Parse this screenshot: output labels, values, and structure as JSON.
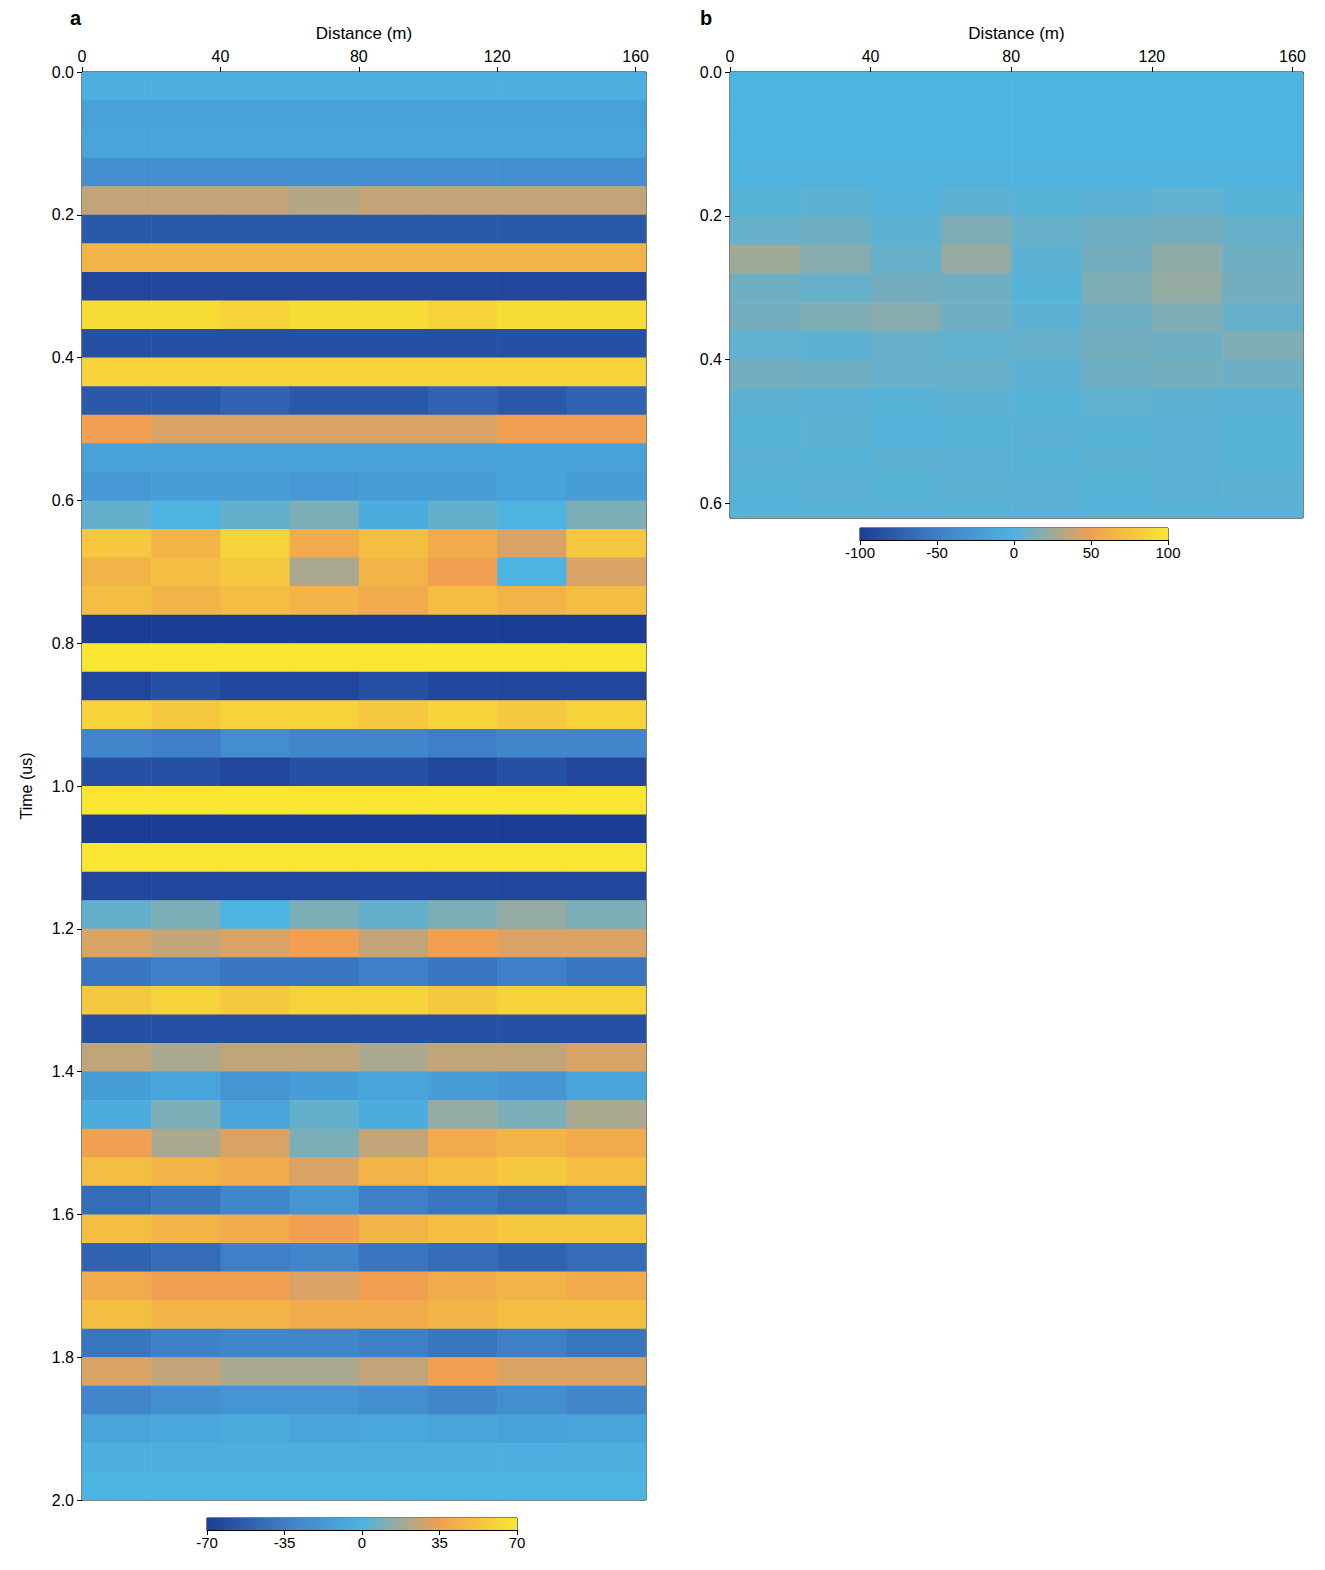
{
  "chart_data": [
    {
      "type": "heatmap",
      "panel": "a",
      "x_label": "Distance (m)",
      "y_label": "Time (us)",
      "xlim": [
        0,
        163
      ],
      "xticks": [
        0,
        40,
        80,
        120,
        160
      ],
      "ylim": [
        0,
        2.0
      ],
      "yticks": [
        {
          "value": 0,
          "label": "0.0"
        },
        0.2,
        0.4,
        0.6,
        0.8,
        {
          "value": 1,
          "label": "1.0"
        },
        1.2,
        1.4,
        1.6,
        1.8,
        {
          "value": 2,
          "label": "2.0"
        }
      ],
      "x_bins": [
        0,
        20,
        40,
        60,
        80,
        100,
        120,
        140,
        163
      ],
      "y_bins": [
        0,
        0.04,
        0.08,
        0.12,
        0.16,
        0.2,
        0.24,
        0.28,
        0.32,
        0.36,
        0.4,
        0.44,
        0.48,
        0.52,
        0.56,
        0.6,
        0.64,
        0.68,
        0.72,
        0.76,
        0.8,
        0.84,
        0.88,
        0.92,
        0.96,
        1.0,
        1.04,
        1.08,
        1.12,
        1.16,
        1.2,
        1.24,
        1.28,
        1.32,
        1.36,
        1.4,
        1.44,
        1.48,
        1.52,
        1.56,
        1.6,
        1.64,
        1.68,
        1.72,
        1.76,
        1.8,
        1.84,
        1.88,
        1.92,
        1.96,
        2.0
      ],
      "cells": [
        [
          -3,
          -3,
          -3,
          -3,
          -3,
          -3,
          -3,
          -3
        ],
        [
          -12,
          -12,
          -12,
          -12,
          -12,
          -12,
          -12,
          -12
        ],
        [
          -10,
          -10,
          -10,
          -10,
          -10,
          -10,
          -10,
          -10
        ],
        [
          -25,
          -25,
          -25,
          -25,
          -25,
          -25,
          -25,
          -25
        ],
        [
          25,
          25,
          25,
          22,
          25,
          25,
          25,
          25
        ],
        [
          -55,
          -55,
          -55,
          -55,
          -55,
          -55,
          -55,
          -55
        ],
        [
          45,
          45,
          45,
          45,
          45,
          45,
          45,
          45
        ],
        [
          -65,
          -65,
          -65,
          -65,
          -65,
          -65,
          -65,
          -65
        ],
        [
          65,
          65,
          60,
          65,
          65,
          60,
          65,
          65
        ],
        [
          -60,
          -60,
          -60,
          -60,
          -60,
          -60,
          -60,
          -60
        ],
        [
          60,
          60,
          60,
          60,
          60,
          60,
          60,
          60
        ],
        [
          -55,
          -55,
          -50,
          -55,
          -55,
          -50,
          -55,
          -50
        ],
        [
          35,
          30,
          30,
          30,
          30,
          30,
          35,
          35
        ],
        [
          -12,
          -12,
          -12,
          -12,
          -12,
          -12,
          -12,
          -12
        ],
        [
          -18,
          -15,
          -15,
          -18,
          -15,
          -15,
          -12,
          -15
        ],
        [
          5,
          0,
          5,
          10,
          -5,
          5,
          0,
          10
        ],
        [
          55,
          45,
          60,
          40,
          50,
          40,
          30,
          55
        ],
        [
          45,
          50,
          55,
          20,
          45,
          35,
          0,
          30
        ],
        [
          50,
          45,
          50,
          45,
          40,
          50,
          45,
          50
        ],
        [
          -70,
          -70,
          -70,
          -70,
          -70,
          -70,
          -70,
          -70
        ],
        [
          70,
          70,
          70,
          70,
          70,
          70,
          70,
          70
        ],
        [
          -65,
          -60,
          -65,
          -65,
          -60,
          -65,
          -65,
          -65
        ],
        [
          60,
          55,
          60,
          60,
          55,
          60,
          55,
          60
        ],
        [
          -30,
          -35,
          -25,
          -30,
          -30,
          -35,
          -30,
          -30
        ],
        [
          -60,
          -60,
          -65,
          -60,
          -60,
          -65,
          -60,
          -65
        ],
        [
          70,
          70,
          70,
          70,
          70,
          70,
          70,
          70
        ],
        [
          -70,
          -70,
          -70,
          -70,
          -70,
          -70,
          -70,
          -70
        ],
        [
          70,
          70,
          70,
          70,
          70,
          70,
          70,
          70
        ],
        [
          -65,
          -65,
          -65,
          -65,
          -65,
          -65,
          -65,
          -65
        ],
        [
          5,
          10,
          0,
          10,
          5,
          10,
          15,
          10
        ],
        [
          30,
          25,
          30,
          35,
          25,
          35,
          30,
          30
        ],
        [
          -40,
          -35,
          -40,
          -40,
          -35,
          -40,
          -35,
          -40
        ],
        [
          55,
          60,
          55,
          60,
          60,
          55,
          60,
          60
        ],
        [
          -60,
          -60,
          -60,
          -60,
          -60,
          -60,
          -60,
          -60
        ],
        [
          25,
          20,
          25,
          25,
          20,
          25,
          25,
          30
        ],
        [
          -15,
          -10,
          -20,
          -15,
          -10,
          -15,
          -20,
          -10
        ],
        [
          -5,
          10,
          -10,
          5,
          -5,
          15,
          10,
          20
        ],
        [
          35,
          20,
          30,
          10,
          25,
          40,
          45,
          40
        ],
        [
          50,
          45,
          40,
          30,
          45,
          50,
          55,
          50
        ],
        [
          -45,
          -40,
          -30,
          -20,
          -35,
          -40,
          -45,
          -40
        ],
        [
          50,
          45,
          40,
          35,
          45,
          50,
          55,
          55
        ],
        [
          -50,
          -45,
          -35,
          -30,
          -40,
          -45,
          -50,
          -45
        ],
        [
          40,
          35,
          35,
          30,
          35,
          40,
          45,
          40
        ],
        [
          50,
          45,
          45,
          40,
          40,
          45,
          50,
          50
        ],
        [
          -40,
          -35,
          -30,
          -30,
          -35,
          -40,
          -35,
          -40
        ],
        [
          30,
          25,
          20,
          20,
          25,
          35,
          30,
          30
        ],
        [
          -30,
          -25,
          -20,
          -20,
          -25,
          -30,
          -25,
          -30
        ],
        [
          -10,
          -8,
          -5,
          -10,
          -8,
          -10,
          -12,
          -10
        ],
        [
          -3,
          -3,
          -3,
          -3,
          -3,
          -3,
          -3,
          -3
        ],
        [
          0,
          0,
          0,
          0,
          0,
          0,
          0,
          0
        ]
      ],
      "colorbar": {
        "range": [
          -70,
          70
        ],
        "ticks": [
          -70,
          -35,
          0,
          35,
          70
        ]
      }
    },
    {
      "type": "heatmap",
      "panel": "b",
      "x_label": "Distance (m)",
      "xlim": [
        0,
        163
      ],
      "xticks": [
        0,
        40,
        80,
        120,
        160
      ],
      "ylim": [
        0,
        0.62
      ],
      "yticks": [
        {
          "value": 0,
          "label": "0.0"
        },
        0.2,
        0.4,
        0.6
      ],
      "x_bins": [
        0,
        20,
        40,
        60,
        80,
        100,
        120,
        140,
        163
      ],
      "y_bins": [
        0,
        0.04,
        0.08,
        0.12,
        0.16,
        0.2,
        0.24,
        0.28,
        0.32,
        0.36,
        0.4,
        0.44,
        0.48,
        0.52,
        0.56,
        0.6,
        0.62
      ],
      "cells": [
        [
          0,
          0,
          0,
          0,
          0,
          0,
          0,
          0
        ],
        [
          0,
          0,
          0,
          0,
          0,
          0,
          0,
          0
        ],
        [
          0,
          0,
          0,
          0,
          0,
          0,
          0,
          0
        ],
        [
          1,
          1,
          1,
          1,
          1,
          1,
          1,
          1
        ],
        [
          3,
          5,
          2,
          5,
          3,
          4,
          6,
          3
        ],
        [
          8,
          10,
          5,
          15,
          8,
          10,
          12,
          8
        ],
        [
          25,
          18,
          8,
          22,
          5,
          12,
          20,
          10
        ],
        [
          10,
          8,
          12,
          10,
          3,
          15,
          22,
          12
        ],
        [
          12,
          15,
          18,
          10,
          5,
          10,
          15,
          8
        ],
        [
          6,
          5,
          8,
          6,
          8,
          12,
          10,
          15
        ],
        [
          12,
          10,
          8,
          8,
          5,
          10,
          12,
          10
        ],
        [
          5,
          4,
          3,
          5,
          3,
          6,
          5,
          4
        ],
        [
          3,
          5,
          2,
          3,
          4,
          3,
          4,
          3
        ],
        [
          4,
          3,
          5,
          4,
          3,
          5,
          4,
          3
        ],
        [
          3,
          4,
          3,
          5,
          4,
          3,
          4,
          5
        ],
        [
          3,
          3,
          4,
          3,
          4,
          3,
          3,
          4
        ]
      ],
      "colorbar": {
        "range": [
          -100,
          100
        ],
        "ticks": [
          -100,
          -50,
          0,
          50,
          100
        ]
      }
    }
  ]
}
